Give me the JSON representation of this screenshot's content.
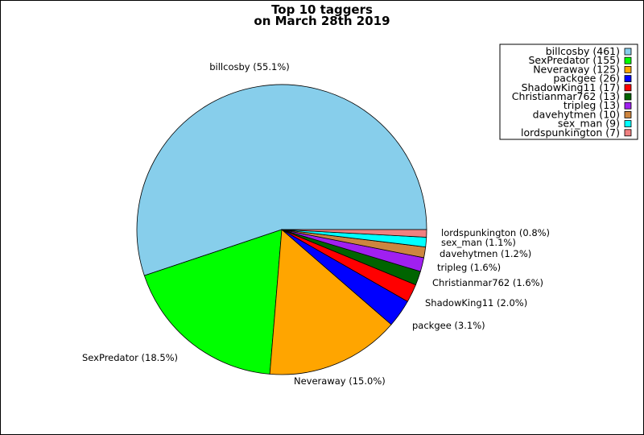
{
  "chart_data": {
    "type": "pie",
    "title": [
      "Top 10 taggers",
      "on March 28th 2019"
    ],
    "slices": [
      {
        "name": "billcosby",
        "value": 461,
        "pct_label": "55.1%",
        "color": "#87ceeb"
      },
      {
        "name": "SexPredator",
        "value": 155,
        "pct_label": "18.5%",
        "color": "#00ff00"
      },
      {
        "name": "Neveraway",
        "value": 125,
        "pct_label": "15.0%",
        "color": "#ffa500"
      },
      {
        "name": "packgee",
        "value": 26,
        "pct_label": "3.1%",
        "color": "#0000ff"
      },
      {
        "name": "ShadowKing11",
        "value": 17,
        "pct_label": "2.0%",
        "color": "#ff0000"
      },
      {
        "name": "Christianmar762",
        "value": 13,
        "pct_label": "1.6%",
        "color": "#006400"
      },
      {
        "name": "tripleg",
        "value": 13,
        "pct_label": "1.6%",
        "color": "#a020f0"
      },
      {
        "name": "davehytmen",
        "value": 10,
        "pct_label": "1.2%",
        "color": "#cd853f"
      },
      {
        "name": "sex_man",
        "value": 9,
        "pct_label": "1.1%",
        "color": "#00ffff"
      },
      {
        "name": "lordspunkington",
        "value": 7,
        "pct_label": "0.8%",
        "color": "#f08080"
      }
    ],
    "legend_placement": "top-right",
    "start_angle": "0 degrees (east), counter-clockwise"
  }
}
